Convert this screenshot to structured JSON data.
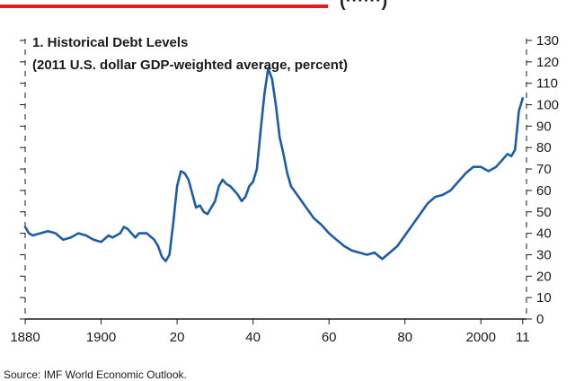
{
  "header": {
    "fragment_text": "(······)"
  },
  "source_note": "Source: IMF World Economic Outlook.",
  "colors": {
    "accent_red": "#e31b23",
    "line_blue": "#1d5ca8",
    "axis_black": "#1a1a1a",
    "background": "#ffffff"
  },
  "chart_data": {
    "type": "line",
    "title": "1. Historical Debt Levels",
    "subtitle": "(2011 U.S. dollar GDP-weighted average, percent)",
    "xlabel": "",
    "ylabel": "",
    "x_ticks": [
      {
        "value": 1880,
        "label": "1880"
      },
      {
        "value": 1900,
        "label": "1900"
      },
      {
        "value": 1920,
        "label": "20"
      },
      {
        "value": 1940,
        "label": "40"
      },
      {
        "value": 1960,
        "label": "60"
      },
      {
        "value": 1980,
        "label": "80"
      },
      {
        "value": 2000,
        "label": "2000"
      },
      {
        "value": 2011,
        "label": "11"
      }
    ],
    "y_ticks": [
      0,
      10,
      20,
      30,
      40,
      50,
      60,
      70,
      80,
      90,
      100,
      110,
      120,
      130
    ],
    "xlim": [
      1880,
      2012
    ],
    "ylim": [
      0,
      130
    ],
    "y_axis_side": "right",
    "grid": false,
    "series": [
      {
        "x": [
          1880,
          1881,
          1882,
          1884,
          1886,
          1888,
          1890,
          1892,
          1894,
          1896,
          1898,
          1900,
          1902,
          1903,
          1905,
          1906,
          1907,
          1909,
          1910,
          1912,
          1914,
          1915,
          1916,
          1917,
          1918,
          1919,
          1920,
          1921,
          1922,
          1923,
          1925,
          1926,
          1927,
          1928,
          1930,
          1931,
          1932,
          1933,
          1934,
          1935,
          1936,
          1937,
          1938,
          1939,
          1940,
          1941,
          1942,
          1943,
          1944,
          1945,
          1946,
          1947,
          1948,
          1949,
          1950,
          1952,
          1954,
          1956,
          1958,
          1960,
          1962,
          1964,
          1966,
          1968,
          1970,
          1972,
          1974,
          1976,
          1978,
          1980,
          1982,
          1984,
          1986,
          1988,
          1990,
          1992,
          1994,
          1996,
          1998,
          2000,
          2002,
          2004,
          2006,
          2007,
          2008,
          2009,
          2010,
          2011
        ],
        "values": [
          43,
          40,
          39,
          40,
          41,
          40,
          37,
          38,
          40,
          39,
          37,
          36,
          39,
          38,
          40,
          43,
          42,
          38,
          40,
          40,
          37,
          34,
          29,
          27,
          30,
          45,
          62,
          69,
          68,
          65,
          52,
          53,
          50,
          49,
          55,
          62,
          65,
          63,
          62,
          60,
          58,
          55,
          57,
          62,
          64,
          70,
          88,
          105,
          117,
          112,
          100,
          85,
          77,
          68,
          62,
          57,
          52,
          47,
          44,
          40,
          37,
          34,
          32,
          31,
          30,
          31,
          28,
          31,
          34,
          39,
          44,
          49,
          54,
          57,
          58,
          60,
          64,
          68,
          71,
          71,
          69,
          71,
          75,
          77,
          76,
          79,
          97,
          103
        ]
      }
    ]
  }
}
